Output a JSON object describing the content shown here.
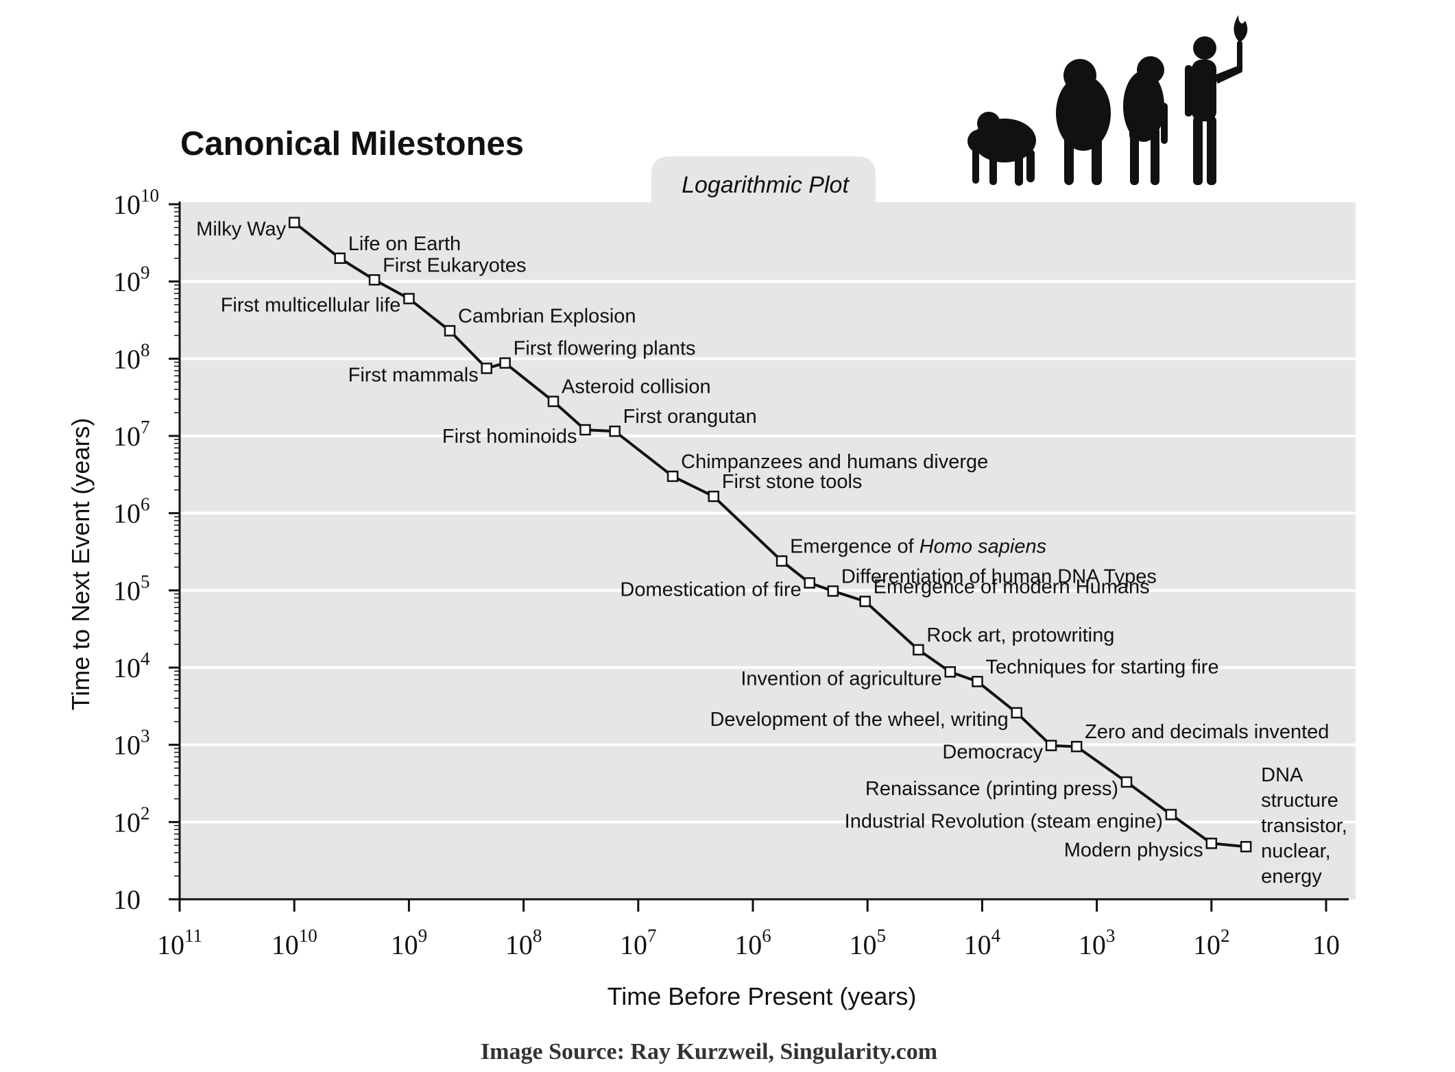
{
  "chart_data": {
    "type": "line",
    "title": "Canonical Milestones",
    "subtitle": "Logarithmic Plot",
    "xlabel": "Time Before Present (years)",
    "ylabel": "Time to Next Event (years)",
    "x_scale": "log-reversed",
    "y_scale": "log",
    "xlim": [
      100000000000,
      10
    ],
    "ylim": [
      10,
      10000000000
    ],
    "x_ticks": [
      {
        "base": "10",
        "exp": "11",
        "value": 100000000000
      },
      {
        "base": "10",
        "exp": "10",
        "value": 10000000000
      },
      {
        "base": "10",
        "exp": "9",
        "value": 1000000000
      },
      {
        "base": "10",
        "exp": "8",
        "value": 100000000
      },
      {
        "base": "10",
        "exp": "7",
        "value": 10000000
      },
      {
        "base": "10",
        "exp": "6",
        "value": 1000000
      },
      {
        "base": "10",
        "exp": "5",
        "value": 100000
      },
      {
        "base": "10",
        "exp": "4",
        "value": 10000
      },
      {
        "base": "10",
        "exp": "3",
        "value": 1000
      },
      {
        "base": "10",
        "exp": "2",
        "value": 100
      },
      {
        "base": "10",
        "exp": "",
        "value": 10
      }
    ],
    "y_ticks": [
      {
        "base": "10",
        "exp": "10",
        "value": 10000000000
      },
      {
        "base": "10",
        "exp": "9",
        "value": 1000000000
      },
      {
        "base": "10",
        "exp": "8",
        "value": 100000000
      },
      {
        "base": "10",
        "exp": "7",
        "value": 10000000
      },
      {
        "base": "10",
        "exp": "6",
        "value": 1000000
      },
      {
        "base": "10",
        "exp": "5",
        "value": 100000
      },
      {
        "base": "10",
        "exp": "4",
        "value": 10000
      },
      {
        "base": "10",
        "exp": "3",
        "value": 1000
      },
      {
        "base": "10",
        "exp": "2",
        "value": 100
      },
      {
        "base": "10",
        "exp": "",
        "value": 10
      }
    ],
    "grid": "horizontal",
    "series": [
      {
        "name": "Canonical Milestones",
        "points": [
          {
            "label": "Milky Way",
            "x": 10000000000,
            "y": 5800000000,
            "side": "left"
          },
          {
            "label": "Life on Earth",
            "x": 4000000000,
            "y": 2000000000,
            "side": "right"
          },
          {
            "label": "First Eukaryotes",
            "x": 2000000000,
            "y": 1050000000,
            "side": "right"
          },
          {
            "label": "First multicellular life",
            "x": 1000000000,
            "y": 600000000,
            "side": "left"
          },
          {
            "label": "Cambrian Explosion",
            "x": 440000000,
            "y": 230000000,
            "side": "right"
          },
          {
            "label": "First mammals",
            "x": 210000000,
            "y": 75000000,
            "side": "left"
          },
          {
            "label": "First flowering plants",
            "x": 145000000,
            "y": 88000000,
            "side": "right"
          },
          {
            "label": "Asteroid collision",
            "x": 55000000,
            "y": 28000000,
            "side": "right"
          },
          {
            "label": "First hominoids",
            "x": 29000000,
            "y": 12000000,
            "side": "left"
          },
          {
            "label": "First orangutan",
            "x": 16000000,
            "y": 11500000,
            "side": "right"
          },
          {
            "label": "Chimpanzees and humans diverge",
            "x": 5000000,
            "y": 3000000,
            "side": "right"
          },
          {
            "label": "First stone tools",
            "x": 2200000,
            "y": 1650000,
            "side": "right"
          },
          {
            "label": "Emergence of ",
            "label_em": "Homo sapiens",
            "x": 560000,
            "y": 240000,
            "side": "right"
          },
          {
            "label": "Domestication of fire",
            "x": 320000,
            "y": 125000,
            "side": "left"
          },
          {
            "label": "Differentiation of human DNA Types",
            "x": 200000,
            "y": 98000,
            "side": "right"
          },
          {
            "label": "Emergence of modern Humans",
            "x": 105000,
            "y": 72000,
            "side": "right"
          },
          {
            "label": "Rock art, protowriting",
            "x": 36000,
            "y": 17000,
            "side": "right"
          },
          {
            "label": "Invention of agriculture",
            "x": 19000,
            "y": 8800,
            "side": "left"
          },
          {
            "label": "Techniques for starting fire",
            "x": 11000,
            "y": 6600,
            "side": "right"
          },
          {
            "label": "Development of the wheel, writing",
            "x": 5000,
            "y": 2600,
            "side": "left"
          },
          {
            "label": "Democracy",
            "x": 2500,
            "y": 980,
            "side": "left"
          },
          {
            "label": "Zero and decimals invented",
            "x": 1500,
            "y": 950,
            "side": "right"
          },
          {
            "label": "Renaissance (printing press)",
            "x": 550,
            "y": 330,
            "side": "left"
          },
          {
            "label": "Industrial Revolution (steam engine)",
            "x": 225,
            "y": 125,
            "side": "left"
          },
          {
            "label": "Modern physics",
            "x": 100,
            "y": 53,
            "side": "left"
          },
          {
            "label": "DNA",
            "label_lines": [
              "DNA",
              "structure",
              "transistor,",
              "nuclear,",
              "energy"
            ],
            "x": 50,
            "y": 48,
            "side": "right"
          }
        ]
      }
    ],
    "source": "Image Source: Ray Kurzweil, Singularity.com"
  }
}
